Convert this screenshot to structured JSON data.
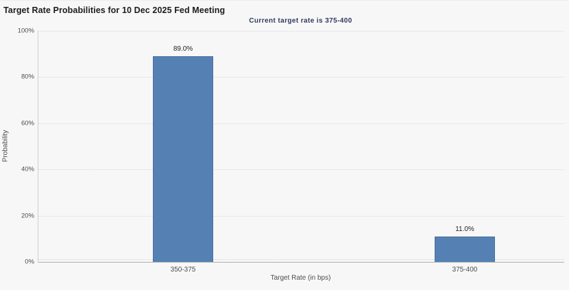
{
  "chart_data": {
    "type": "bar",
    "title": "Target Rate Probabilities for 10 Dec 2025 Fed Meeting",
    "subtitle": "Current target rate is 375-400",
    "categories": [
      "350-375",
      "375-400"
    ],
    "values": [
      89.0,
      11.0
    ],
    "value_labels": [
      "89.0%",
      "11.0%"
    ],
    "xlabel": "Target Rate (in bps)",
    "ylabel": "Probability",
    "ylim": [
      0,
      100
    ],
    "y_ticks": [
      0,
      20,
      40,
      60,
      80,
      100
    ],
    "y_tick_labels": [
      "0%",
      "20%",
      "40%",
      "60%",
      "80%",
      "100%"
    ],
    "grid": "horizontal-dotted",
    "legend": "none",
    "bar_color": "#5580b4",
    "bar_border_color": "#4a6fa0",
    "background_color": "#f7f7f7",
    "subtitle_color": "#2d3a5e"
  }
}
